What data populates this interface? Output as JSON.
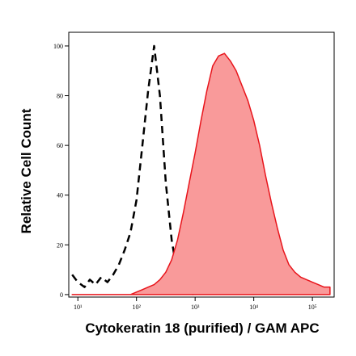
{
  "chart_data": {
    "type": "area",
    "x_label": "Cytokeratin 18 (purified) / GAM APC",
    "y_label": "Relative Cell Count",
    "x_log": true,
    "x": [
      8,
      10,
      13,
      16,
      20,
      25,
      32,
      40,
      50,
      63,
      79,
      100,
      126,
      158,
      200,
      251,
      316,
      398,
      501,
      631,
      794,
      1000,
      1259,
      1585,
      1995,
      2512,
      3162,
      3981,
      5012,
      6310,
      7943,
      10000,
      12589,
      15849,
      19953,
      25119,
      31623,
      39811,
      50119,
      63096,
      79433,
      100000,
      125893,
      158489,
      199526
    ],
    "series": [
      {
        "color": "#000000",
        "style": "dashed",
        "filled": false,
        "values": [
          8,
          5,
          3,
          6,
          4,
          7,
          5,
          8,
          12,
          18,
          25,
          38,
          60,
          82,
          100,
          80,
          45,
          22,
          8,
          2,
          0.5,
          0,
          null,
          null,
          null,
          null,
          null,
          null,
          null,
          null,
          null,
          null,
          null,
          null,
          null,
          null,
          null,
          null,
          null,
          null,
          null,
          null,
          null,
          null,
          null
        ]
      },
      {
        "color": "#e8141b",
        "fill": "#f99a9a",
        "style": "solid",
        "filled": true,
        "values": [
          0,
          0,
          0,
          0,
          0,
          0,
          0,
          0,
          0,
          0,
          0,
          1,
          2,
          3,
          4,
          6,
          9,
          14,
          22,
          33,
          45,
          57,
          70,
          82,
          92,
          96,
          97,
          94,
          90,
          84,
          78,
          70,
          60,
          48,
          37,
          27,
          18,
          12,
          9,
          7,
          6,
          5,
          4,
          3,
          3
        ]
      }
    ],
    "xlim": [
      7,
      235000
    ],
    "xticks": [
      {
        "value": 10,
        "label": "10¹"
      },
      {
        "value": 100,
        "label": "10²"
      },
      {
        "value": 1000,
        "label": "10³"
      },
      {
        "value": 10000,
        "label": "10⁴"
      },
      {
        "value": 100000,
        "label": "10⁵"
      }
    ],
    "ylim": [
      -1,
      105.5
    ],
    "yticks": [
      0,
      20,
      40,
      60,
      80,
      100
    ]
  }
}
